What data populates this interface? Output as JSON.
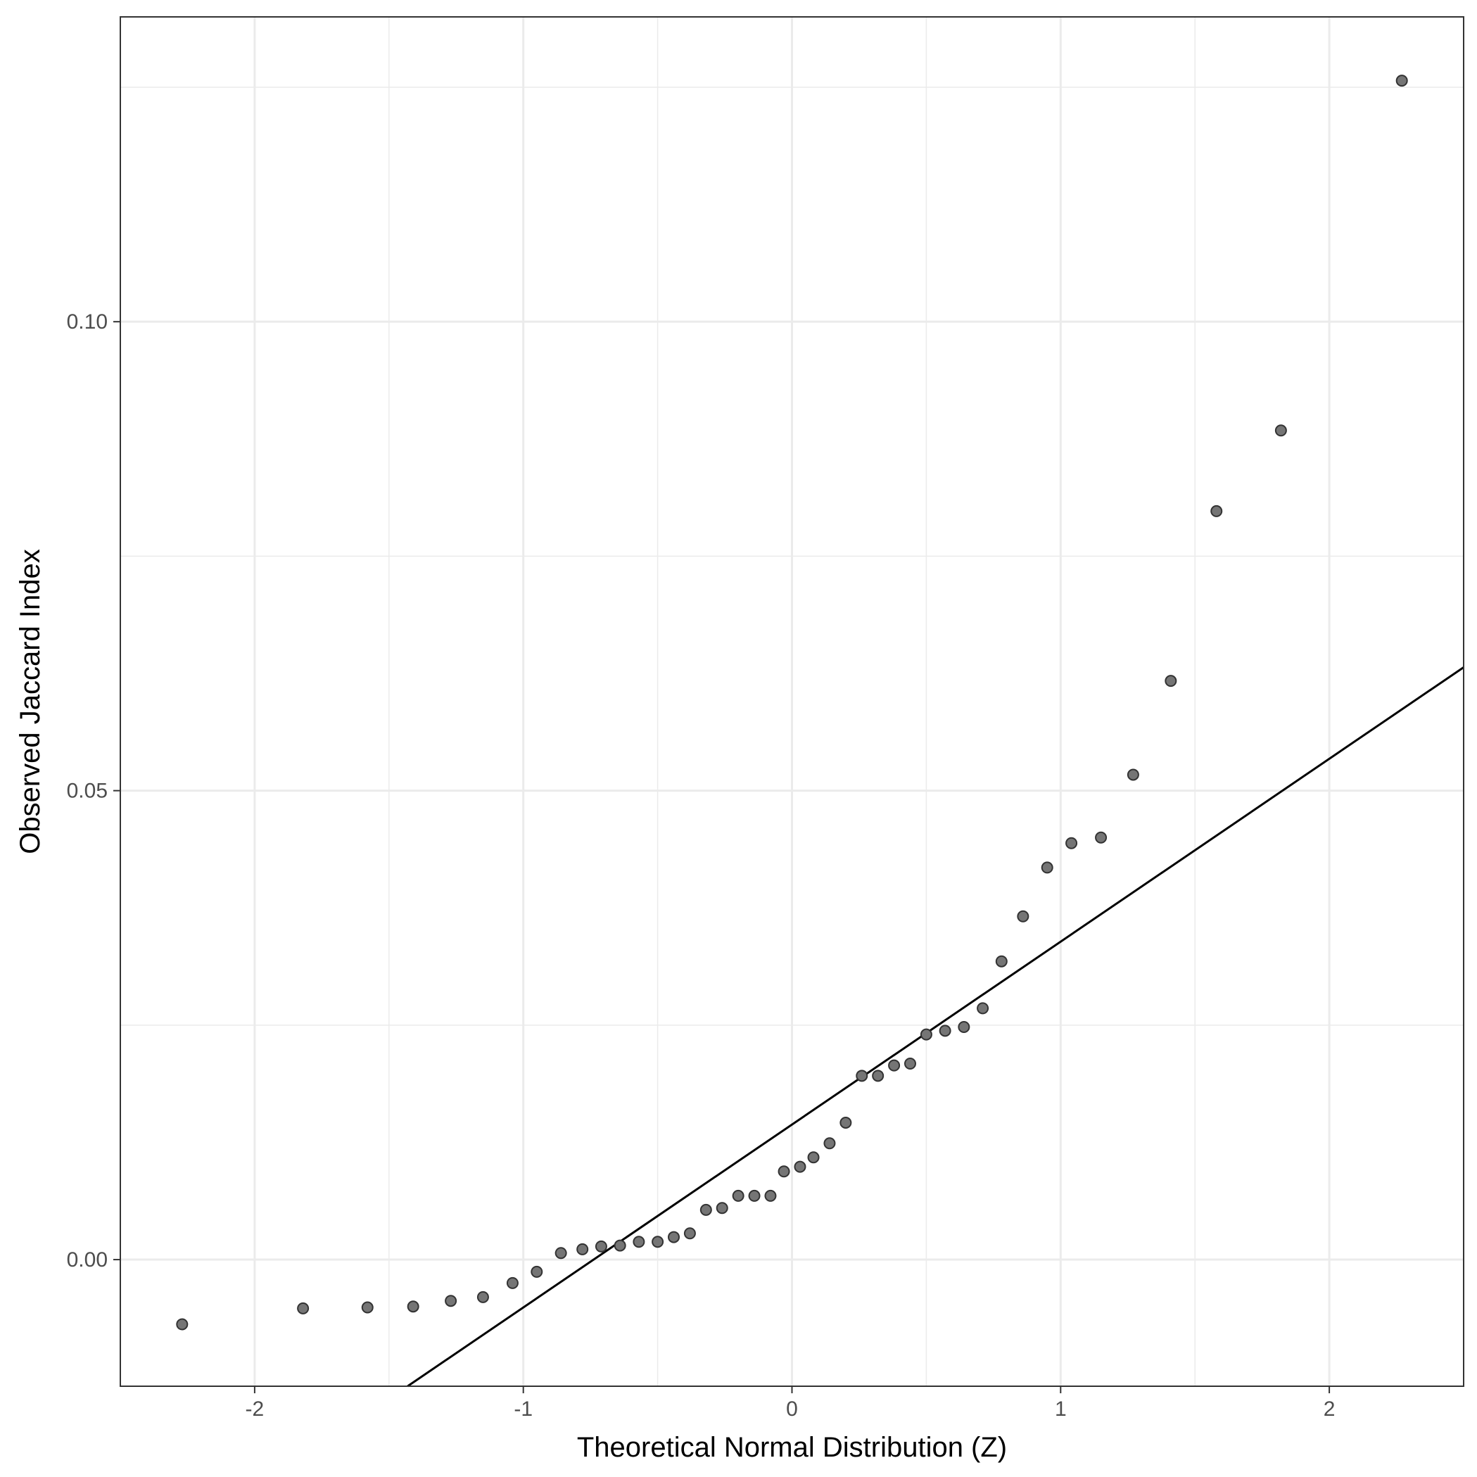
{
  "chart_data": {
    "type": "scatter",
    "title": "",
    "xlabel": "Theoretical Normal Distribution (Z)",
    "ylabel": "Observed Jaccard Index",
    "xlim": [
      -2.5,
      2.5
    ],
    "ylim": [
      -0.0135,
      0.1325
    ],
    "x_ticks": [
      -2,
      -1,
      0,
      1,
      2
    ],
    "x_tick_labels": [
      "-2",
      "-1",
      "0",
      "1",
      "2"
    ],
    "y_ticks": [
      0.0,
      0.05,
      0.1
    ],
    "y_tick_labels": [
      "0.00",
      "0.05",
      "0.10"
    ],
    "grid": true,
    "points": {
      "x": [
        -2.27,
        -1.82,
        -1.58,
        -1.41,
        -1.27,
        -1.15,
        -1.04,
        -0.95,
        -0.86,
        -0.78,
        -0.71,
        -0.64,
        -0.57,
        -0.5,
        -0.44,
        -0.38,
        -0.32,
        -0.26,
        -0.2,
        -0.14,
        -0.08,
        -0.03,
        0.03,
        0.08,
        0.14,
        0.2,
        0.26,
        0.32,
        0.38,
        0.44,
        0.5,
        0.57,
        0.64,
        0.71,
        0.78,
        0.86,
        0.95,
        1.04,
        1.15,
        1.27,
        1.41,
        1.58,
        1.82,
        2.27
      ],
      "y": [
        -0.0069,
        -0.0052,
        -0.0051,
        -0.005,
        -0.0044,
        -0.004,
        -0.0025,
        -0.0013,
        0.0007,
        0.0011,
        0.0014,
        0.0015,
        0.0019,
        0.0019,
        0.0024,
        0.0028,
        0.0053,
        0.0055,
        0.0068,
        0.0068,
        0.0068,
        0.0094,
        0.0099,
        0.0109,
        0.0124,
        0.0146,
        0.0196,
        0.0196,
        0.0207,
        0.0209,
        0.024,
        0.0244,
        0.0248,
        0.0268,
        0.0318,
        0.0366,
        0.0418,
        0.0444,
        0.045,
        0.0517,
        0.0617,
        0.0798,
        0.0884,
        0.1257
      ],
      "color": "#333333",
      "fill": "#757575"
    },
    "reference_line": {
      "slope": 0.0195,
      "intercept": 0.0144,
      "color": "#000000"
    }
  }
}
